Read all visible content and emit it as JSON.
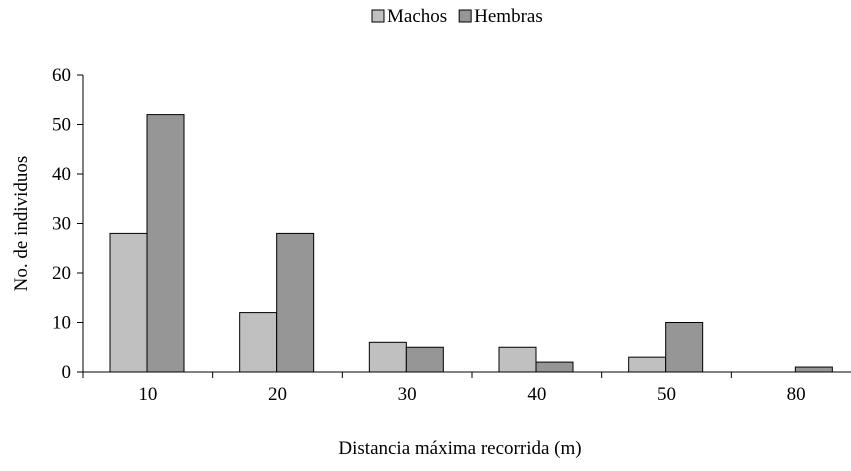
{
  "chart_data": {
    "type": "bar",
    "title": "",
    "xlabel": "Distancia máxima recorrida (m)",
    "ylabel": "No. de  individuos",
    "categories": [
      "10",
      "20",
      "30",
      "40",
      "50",
      "80"
    ],
    "series": [
      {
        "name": "Machos",
        "values": [
          28,
          12,
          6,
          5,
          3,
          0
        ],
        "color": "#c0c0c0"
      },
      {
        "name": "Hembras",
        "values": [
          52,
          28,
          5,
          2,
          10,
          1
        ],
        "color": "#969696"
      }
    ],
    "ylim": [
      0,
      60
    ],
    "yticks": [
      "0",
      "10",
      "20",
      "30",
      "40",
      "50",
      "60"
    ],
    "grid": false,
    "legend_position": "top-center"
  }
}
